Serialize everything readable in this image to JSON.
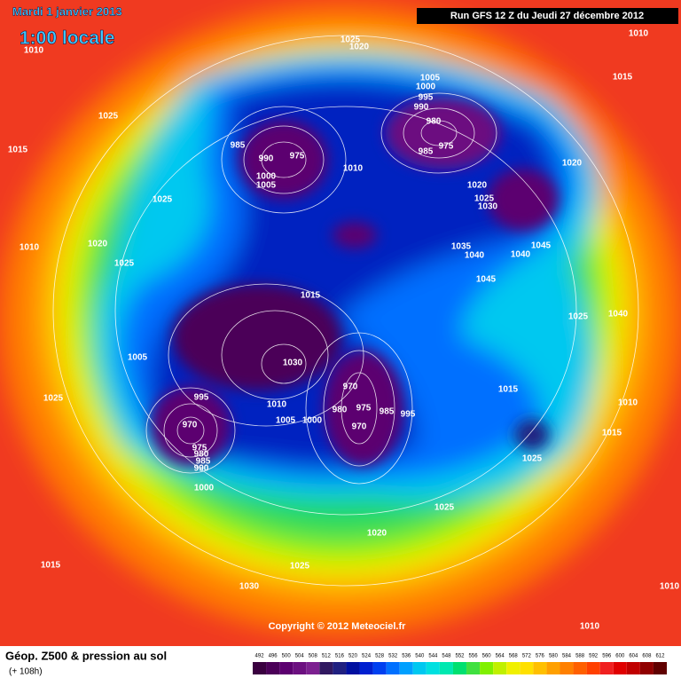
{
  "header": {
    "title": "Mardi 1 janvier 2013",
    "time": "1:00 locale",
    "run": "Run GFS 12 Z du Jeudi 27 décembre 2012"
  },
  "footer": {
    "title": "Géop. Z500 & pression au sol",
    "subtitle": "(+ 108h)",
    "copyright": "Copyright © 2012 Meteociel.fr"
  },
  "legend": {
    "values": [
      492,
      496,
      500,
      504,
      508,
      512,
      516,
      520,
      524,
      528,
      532,
      536,
      540,
      544,
      548,
      552,
      556,
      560,
      564,
      568,
      572,
      576,
      580,
      584,
      588,
      592,
      596,
      600,
      604,
      608,
      612
    ],
    "colors": [
      "#3a0040",
      "#4b0058",
      "#5c0070",
      "#6c1080",
      "#7c2090",
      "#301860",
      "#202080",
      "#0010a0",
      "#0020d0",
      "#0040f0",
      "#0070ff",
      "#00a0ff",
      "#00c8f0",
      "#00e0e0",
      "#00e8b0",
      "#00e070",
      "#40e040",
      "#80f000",
      "#c0f000",
      "#f0f000",
      "#ffe000",
      "#ffc000",
      "#ffa000",
      "#ff8000",
      "#ff6000",
      "#ff4000",
      "#f02020",
      "#e00000",
      "#c00000",
      "#900000",
      "#600000"
    ]
  },
  "isobar_labels": [
    "1025",
    "1020",
    "1010",
    "1010",
    "1015",
    "1025",
    "1015",
    "1005",
    "1000",
    "995",
    "990",
    "980",
    "975",
    "985",
    "1020",
    "1020",
    "1025",
    "1030",
    "985",
    "990",
    "975",
    "1000",
    "1005",
    "1010",
    "1025",
    "1010",
    "1020",
    "1025",
    "1035",
    "1040",
    "1045",
    "1040",
    "1045",
    "1015",
    "1025",
    "1040",
    "1005",
    "1030",
    "970",
    "1015",
    "1010",
    "995",
    "1010",
    "975",
    "980",
    "985",
    "995",
    "970",
    "1005",
    "1000",
    "970",
    "975",
    "980",
    "985",
    "990",
    "1025",
    "1015",
    "1025",
    "1000",
    "1025",
    "1020",
    "1015",
    "1025",
    "1030",
    "1010",
    "1010"
  ]
}
